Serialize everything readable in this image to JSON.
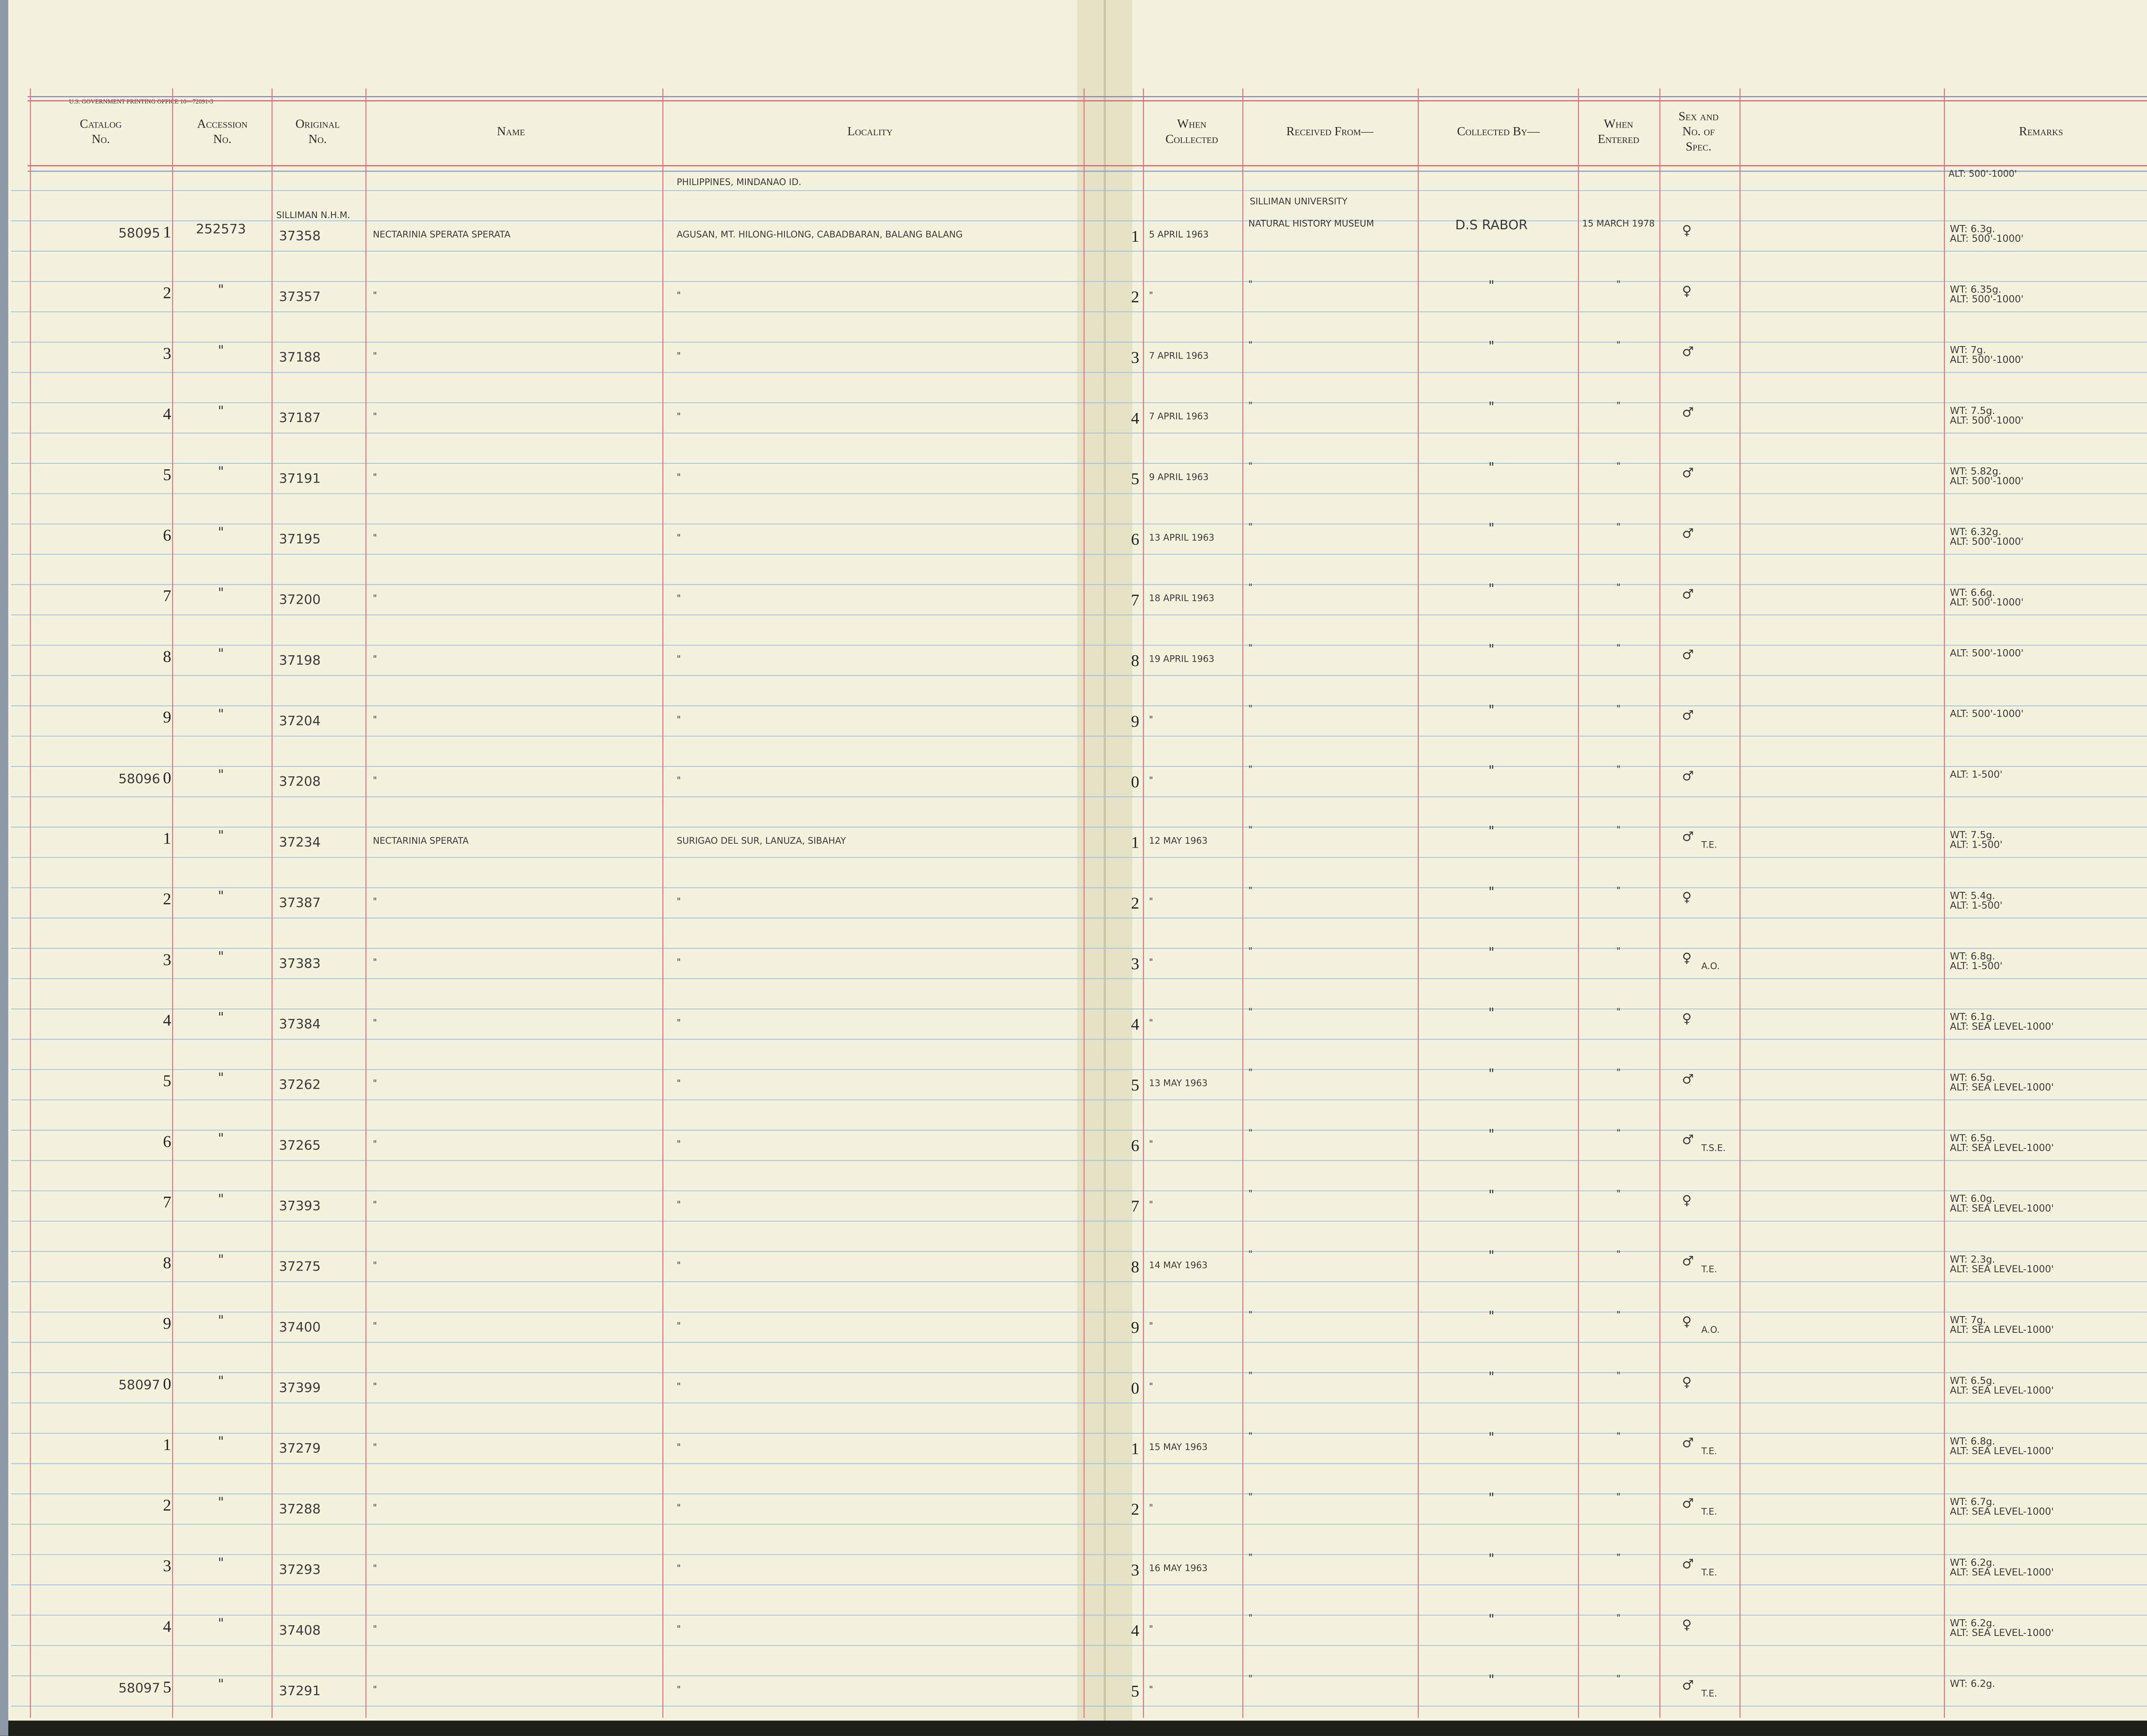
{
  "printer_line": "U.S. GOVERNMENT PRINTING OFFICE   16—72091-3",
  "headers": [
    [
      "Catalog",
      "No."
    ],
    [
      "Accession",
      "No."
    ],
    [
      "Original",
      "No."
    ],
    [
      "Name"
    ],
    [
      "Locality"
    ],
    [
      "When",
      "Collected"
    ],
    [
      "Received From—"
    ],
    [
      "Collected By—"
    ],
    [
      "When",
      "Entered"
    ],
    [
      "Sex and",
      "No. of",
      "Spec."
    ],
    [
      "Remarks"
    ]
  ],
  "top_notes": {
    "original": "SILLIMAN N.H.M.",
    "locality": "PHILIPPINES, MINDANAO ID.",
    "received": "SILLIMAN UNIVERSITY",
    "remarks": "ALT: 500'-1000'"
  },
  "rows": [
    {
      "cat": "58095",
      "n": "1",
      "acc": "252573",
      "orig": "37358",
      "name": "NECTARINIA SPERATA SPERATA",
      "loc": "AGUSAN, MT. HILONG-HILONG, CABADBARAN, BALANG BALANG",
      "n2": "1",
      "coll": "5 APRIL 1963",
      "recv": "NATURAL HISTORY MUSEUM",
      "by": "D.S RABOR",
      "ent": "15 MARCH 1978",
      "sex": "♀",
      "rem": [
        "WT: 6.3g.",
        "ALT: 500'-1000'"
      ]
    },
    {
      "n": "2",
      "acc": "\"",
      "orig": "37357",
      "name": "\"",
      "loc": "\"",
      "n2": "2",
      "coll": "\"",
      "recv": "\"",
      "by": "\"",
      "ent": "\"",
      "sex": "♀",
      "rem": [
        "WT: 6.35g.",
        "ALT: 500'-1000'"
      ]
    },
    {
      "n": "3",
      "acc": "\"",
      "orig": "37188",
      "name": "\"",
      "loc": "\"",
      "n2": "3",
      "coll": "7 APRIL 1963",
      "recv": "\"",
      "by": "\"",
      "ent": "\"",
      "sex": "♂",
      "rem": [
        "WT: 7g.",
        "ALT: 500'-1000'"
      ]
    },
    {
      "n": "4",
      "acc": "\"",
      "orig": "37187",
      "name": "\"",
      "loc": "\"",
      "n2": "4",
      "coll": "7 APRIL 1963",
      "recv": "\"",
      "by": "\"",
      "ent": "\"",
      "sex": "♂",
      "rem": [
        "WT: 7.5g.",
        "ALT: 500'-1000'"
      ]
    },
    {
      "n": "5",
      "acc": "\"",
      "orig": "37191",
      "name": "\"",
      "loc": "\"",
      "n2": "5",
      "coll": "9 APRIL 1963",
      "recv": "\"",
      "by": "\"",
      "ent": "\"",
      "sex": "♂",
      "rem": [
        "WT: 5.82g.",
        "ALT: 500'-1000'"
      ]
    },
    {
      "n": "6",
      "acc": "\"",
      "orig": "37195",
      "name": "\"",
      "loc": "\"",
      "n2": "6",
      "coll": "13 APRIL 1963",
      "recv": "\"",
      "by": "\"",
      "ent": "\"",
      "sex": "♂",
      "rem": [
        "WT: 6.32g.",
        "ALT: 500'-1000'"
      ]
    },
    {
      "n": "7",
      "acc": "\"",
      "orig": "37200",
      "name": "\"",
      "loc": "\"",
      "n2": "7",
      "coll": "18 APRIL 1963",
      "recv": "\"",
      "by": "\"",
      "ent": "\"",
      "sex": "♂",
      "rem": [
        "WT: 6.6g.",
        "ALT: 500'-1000'"
      ]
    },
    {
      "n": "8",
      "acc": "\"",
      "orig": "37198",
      "name": "\"",
      "loc": "\"",
      "n2": "8",
      "coll": "19 APRIL 1963",
      "recv": "\"",
      "by": "\"",
      "ent": "\"",
      "sex": "♂",
      "rem": [
        "ALT: 500'-1000'"
      ]
    },
    {
      "n": "9",
      "acc": "\"",
      "orig": "37204",
      "name": "\"",
      "loc": "\"",
      "n2": "9",
      "coll": "\"",
      "recv": "\"",
      "by": "\"",
      "ent": "\"",
      "sex": "♂",
      "rem": [
        "ALT: 500'-1000'"
      ]
    },
    {
      "cat": "58096",
      "n": "0",
      "acc": "\"",
      "orig": "37208",
      "name": "\"",
      "loc": "\"",
      "n2": "0",
      "coll": "\"",
      "recv": "\"",
      "by": "\"",
      "ent": "\"",
      "sex": "♂",
      "rem": [
        "ALT: 1-500'"
      ]
    },
    {
      "n": "1",
      "acc": "\"",
      "orig": "37234",
      "name": "NECTARINIA SPERATA",
      "loc": "SURIGAO DEL SUR, LANUZA, SIBAHAY",
      "n2": "1",
      "coll": "12 MAY 1963",
      "recv": "\"",
      "by": "\"",
      "ent": "\"",
      "sex": "♂",
      "note": "T.E.",
      "rem": [
        "WT: 7.5g.",
        "ALT: 1-500'"
      ]
    },
    {
      "n": "2",
      "acc": "\"",
      "orig": "37387",
      "name": "\"",
      "loc": "\"",
      "n2": "2",
      "coll": "\"",
      "recv": "\"",
      "by": "\"",
      "ent": "\"",
      "sex": "♀",
      "rem": [
        "WT: 5.4g.",
        "ALT: 1-500'"
      ]
    },
    {
      "n": "3",
      "acc": "\"",
      "orig": "37383",
      "name": "\"",
      "loc": "\"",
      "n2": "3",
      "coll": "\"",
      "recv": "\"",
      "by": "\"",
      "ent": "\"",
      "sex": "♀",
      "note": "A.O.",
      "rem": [
        "WT: 6.8g.",
        "ALT: 1-500'"
      ]
    },
    {
      "n": "4",
      "acc": "\"",
      "orig": "37384",
      "name": "\"",
      "loc": "\"",
      "n2": "4",
      "coll": "\"",
      "recv": "\"",
      "by": "\"",
      "ent": "\"",
      "sex": "♀",
      "rem": [
        "WT: 6.1g.",
        "ALT: SEA LEVEL-1000'"
      ]
    },
    {
      "n": "5",
      "acc": "\"",
      "orig": "37262",
      "name": "\"",
      "loc": "\"",
      "n2": "5",
      "coll": "13 MAY 1963",
      "recv": "\"",
      "by": "\"",
      "ent": "\"",
      "sex": "♂",
      "rem": [
        "WT: 6.5g.",
        "ALT: SEA LEVEL-1000'"
      ]
    },
    {
      "n": "6",
      "acc": "\"",
      "orig": "37265",
      "name": "\"",
      "loc": "\"",
      "n2": "6",
      "coll": "\"",
      "recv": "\"",
      "by": "\"",
      "ent": "\"",
      "sex": "♂",
      "note": "T.S.E.",
      "rem": [
        "WT: 6.5g.",
        "ALT: SEA LEVEL-1000'"
      ]
    },
    {
      "n": "7",
      "acc": "\"",
      "orig": "37393",
      "name": "\"",
      "loc": "\"",
      "n2": "7",
      "coll": "\"",
      "recv": "\"",
      "by": "\"",
      "ent": "\"",
      "sex": "♀",
      "rem": [
        "WT: 6.0g.",
        "ALT: SEA LEVEL-1000'"
      ]
    },
    {
      "n": "8",
      "acc": "\"",
      "orig": "37275",
      "name": "\"",
      "loc": "\"",
      "n2": "8",
      "coll": "14 MAY 1963",
      "recv": "\"",
      "by": "\"",
      "ent": "\"",
      "sex": "♂",
      "note": "T.E.",
      "rem": [
        "WT: 2.3g.",
        "ALT: SEA LEVEL-1000'"
      ]
    },
    {
      "n": "9",
      "acc": "\"",
      "orig": "37400",
      "name": "\"",
      "loc": "\"",
      "n2": "9",
      "coll": "\"",
      "recv": "\"",
      "by": "\"",
      "ent": "\"",
      "sex": "♀",
      "note": "A.O.",
      "rem": [
        "WT: 7g.",
        "ALT: SEA LEVEL-1000'"
      ]
    },
    {
      "cat": "58097",
      "n": "0",
      "acc": "\"",
      "orig": "37399",
      "name": "\"",
      "loc": "\"",
      "n2": "0",
      "coll": "\"",
      "recv": "\"",
      "by": "\"",
      "ent": "\"",
      "sex": "♀",
      "rem": [
        "WT: 6.5g.",
        "ALT: SEA LEVEL-1000'"
      ]
    },
    {
      "n": "1",
      "acc": "\"",
      "orig": "37279",
      "name": "\"",
      "loc": "\"",
      "n2": "1",
      "coll": "15 MAY 1963",
      "recv": "\"",
      "by": "\"",
      "ent": "\"",
      "sex": "♂",
      "note": "T.E.",
      "rem": [
        "WT: 6.8g.",
        "ALT: SEA LEVEL-1000'"
      ]
    },
    {
      "n": "2",
      "acc": "\"",
      "orig": "37288",
      "name": "\"",
      "loc": "\"",
      "n2": "2",
      "coll": "\"",
      "recv": "\"",
      "by": "\"",
      "ent": "\"",
      "sex": "♂",
      "note": "T.E.",
      "rem": [
        "WT: 6.7g.",
        "ALT: SEA LEVEL-1000'"
      ]
    },
    {
      "n": "3",
      "acc": "\"",
      "orig": "37293",
      "name": "\"",
      "loc": "\"",
      "n2": "3",
      "coll": "16 MAY 1963",
      "recv": "\"",
      "by": "\"",
      "ent": "\"",
      "sex": "♂",
      "note": "T.E.",
      "rem": [
        "WT: 6.2g.",
        "ALT: SEA LEVEL-1000'"
      ]
    },
    {
      "n": "4",
      "acc": "\"",
      "orig": "37408",
      "name": "\"",
      "loc": "\"",
      "n2": "4",
      "coll": "\"",
      "recv": "\"",
      "by": "\"",
      "ent": "\"",
      "sex": "♀",
      "rem": [
        "WT: 6.2g.",
        "ALT: SEA LEVEL-1000'"
      ]
    },
    {
      "cat": "58097",
      "n": "5",
      "acc": "\"",
      "orig": "37291",
      "name": "\"",
      "loc": "\"",
      "n2": "5",
      "coll": "\"",
      "recv": "\"",
      "by": "\"",
      "ent": "\"",
      "sex": "♂",
      "note": "T.E.",
      "rem": [
        "WT: 6.2g."
      ]
    }
  ]
}
